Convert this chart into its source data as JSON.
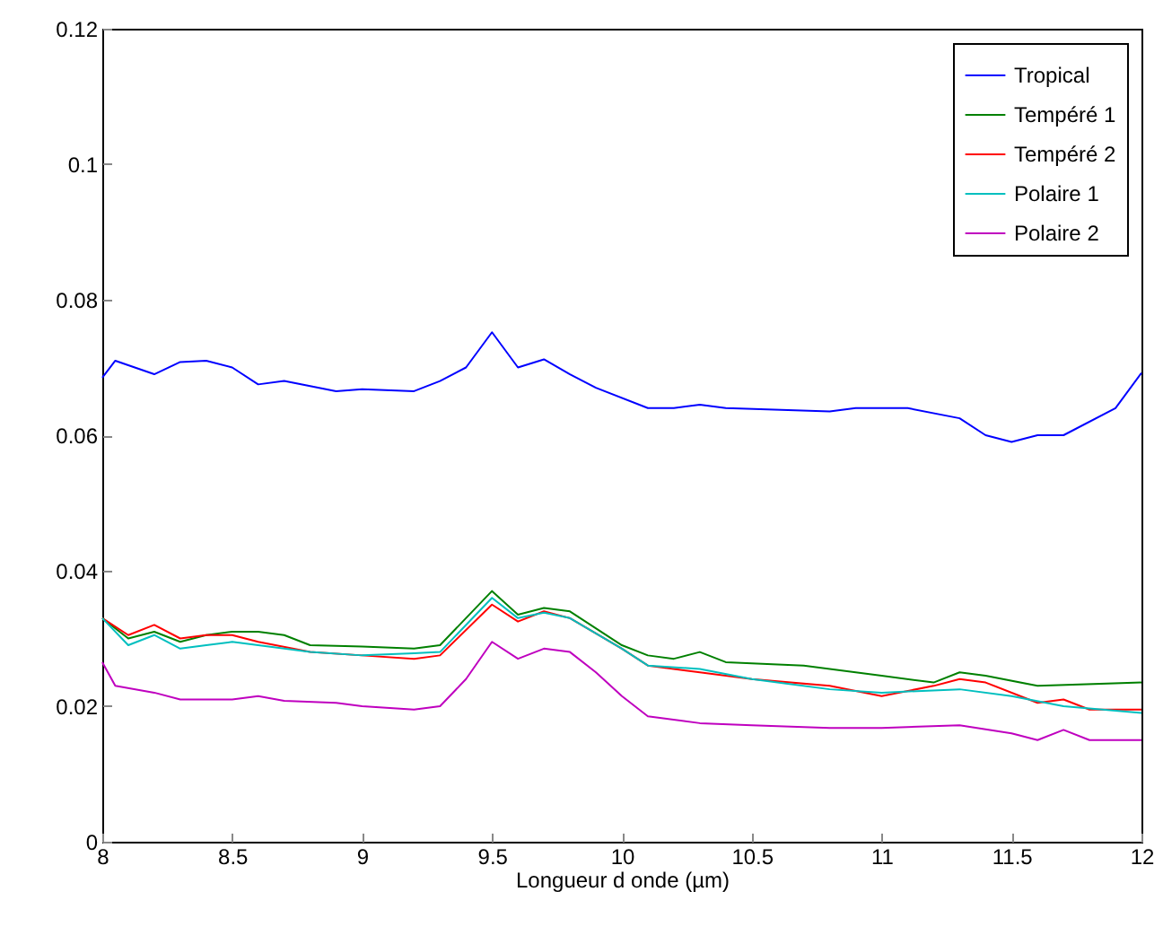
{
  "chart_data": {
    "type": "line",
    "xlabel": "Longueur d onde (µm)",
    "xlim": [
      8,
      12
    ],
    "xticks": [
      8,
      8.5,
      9,
      9.5,
      10,
      10.5,
      11,
      11.5,
      12
    ],
    "ylim": [
      0,
      0.12
    ],
    "yticks": [
      0,
      0.02,
      0.04,
      0.06,
      0.08,
      0.1,
      0.12
    ],
    "grid": false,
    "legend": "top right",
    "line_style": "solid",
    "marker": "none",
    "series": [
      {
        "name": "Tropical",
        "color": "#0000ff",
        "x": [
          8,
          8.05,
          8.2,
          8.3,
          8.4,
          8.5,
          8.6,
          8.7,
          8.9,
          9.0,
          9.2,
          9.3,
          9.4,
          9.5,
          9.6,
          9.7,
          9.8,
          9.9,
          10.1,
          10.2,
          10.3,
          10.4,
          10.8,
          10.9,
          11.1,
          11.3,
          11.4,
          11.5,
          11.6,
          11.7,
          11.9,
          12
        ],
        "values": [
          0.0685,
          0.071,
          0.069,
          0.0708,
          0.071,
          0.07,
          0.0675,
          0.068,
          0.0665,
          0.0668,
          0.0665,
          0.068,
          0.07,
          0.0752,
          0.07,
          0.0712,
          0.069,
          0.067,
          0.064,
          0.064,
          0.0645,
          0.064,
          0.0635,
          0.064,
          0.064,
          0.0625,
          0.06,
          0.059,
          0.06,
          0.06,
          0.064,
          0.0692
        ]
      },
      {
        "name": "Tempéré 1",
        "color": "#008000",
        "x": [
          8,
          8.1,
          8.2,
          8.3,
          8.4,
          8.5,
          8.6,
          8.7,
          8.8,
          9.0,
          9.2,
          9.3,
          9.5,
          9.6,
          9.7,
          9.8,
          10,
          10.1,
          10.2,
          10.3,
          10.4,
          10.7,
          11.0,
          11.2,
          11.3,
          11.4,
          11.6,
          12
        ],
        "values": [
          0.033,
          0.03,
          0.031,
          0.0295,
          0.0305,
          0.031,
          0.031,
          0.0305,
          0.029,
          0.0288,
          0.0285,
          0.029,
          0.037,
          0.0335,
          0.0345,
          0.034,
          0.029,
          0.0275,
          0.027,
          0.028,
          0.0265,
          0.026,
          0.0245,
          0.0235,
          0.025,
          0.0245,
          0.023,
          0.0235
        ]
      },
      {
        "name": "Tempéré 2",
        "color": "#ff0000",
        "x": [
          8,
          8.1,
          8.2,
          8.3,
          8.4,
          8.5,
          8.6,
          8.8,
          9.0,
          9.2,
          9.3,
          9.5,
          9.6,
          9.7,
          9.8,
          10,
          10.1,
          10.3,
          10.5,
          10.8,
          11.0,
          11.2,
          11.3,
          11.4,
          11.6,
          11.7,
          11.8,
          12
        ],
        "values": [
          0.033,
          0.0305,
          0.032,
          0.03,
          0.0305,
          0.0305,
          0.0295,
          0.028,
          0.0275,
          0.027,
          0.0275,
          0.035,
          0.0325,
          0.034,
          0.033,
          0.0285,
          0.026,
          0.025,
          0.024,
          0.023,
          0.0215,
          0.023,
          0.024,
          0.0235,
          0.0205,
          0.021,
          0.0195,
          0.0195
        ]
      },
      {
        "name": "Polaire 1",
        "color": "#00bfbf",
        "x": [
          8,
          8.1,
          8.2,
          8.3,
          8.4,
          8.5,
          8.6,
          8.8,
          9.0,
          9.2,
          9.3,
          9.5,
          9.6,
          9.7,
          9.8,
          10,
          10.1,
          10.3,
          10.5,
          10.8,
          11.0,
          11.3,
          11.5,
          11.7,
          12
        ],
        "values": [
          0.033,
          0.029,
          0.0305,
          0.0285,
          0.029,
          0.0295,
          0.029,
          0.028,
          0.0275,
          0.0278,
          0.028,
          0.036,
          0.033,
          0.0338,
          0.033,
          0.0285,
          0.026,
          0.0255,
          0.024,
          0.0225,
          0.022,
          0.0225,
          0.0215,
          0.02,
          0.019
        ]
      },
      {
        "name": "Polaire 2",
        "color": "#bf00bf",
        "x": [
          8,
          8.05,
          8.2,
          8.3,
          8.5,
          8.6,
          8.7,
          8.9,
          9.0,
          9.2,
          9.3,
          9.4,
          9.5,
          9.6,
          9.7,
          9.8,
          9.9,
          10.0,
          10.1,
          10.3,
          10.5,
          10.8,
          11.0,
          11.3,
          11.5,
          11.6,
          11.7,
          11.8,
          12
        ],
        "values": [
          0.0265,
          0.023,
          0.022,
          0.021,
          0.021,
          0.0215,
          0.0208,
          0.0205,
          0.02,
          0.0195,
          0.02,
          0.024,
          0.0295,
          0.027,
          0.0285,
          0.028,
          0.025,
          0.0215,
          0.0185,
          0.0175,
          0.0172,
          0.0168,
          0.0168,
          0.0172,
          0.016,
          0.015,
          0.0165,
          0.015,
          0.015
        ]
      }
    ]
  }
}
